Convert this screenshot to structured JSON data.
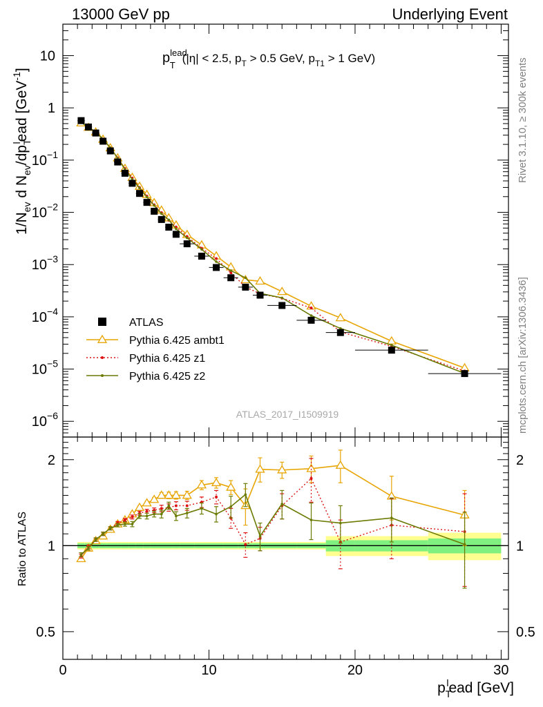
{
  "header": {
    "left": "13000 GeV pp",
    "right": "Underlying Event"
  },
  "annotation": {
    "p": "p",
    "sup": "lead",
    "sub": "T",
    "text1": "(|η| < 2.5, p",
    "sub2": "T",
    "text2": " > 0.5 GeV, p",
    "sub3": "T1",
    "text3": " > 1 GeV)"
  },
  "side_text": {
    "rivet": "Rivet 3.1.10, ≥ 300k events",
    "mcplots": "mcplots.cern.ch [arXiv:1306.3436]"
  },
  "watermark": "ATLAS_2017_I1509919",
  "y_label": {
    "t1": "1/N",
    "s1": "ev",
    "t2": " d N",
    "s2": "ev",
    "t3": "/dp",
    "s3": "T",
    "p3": "l",
    "t4": "ead [GeV",
    "p4": "-1",
    "t5": "]"
  },
  "x_label": {
    "t1": "p",
    "s1": "T",
    "p1": "l",
    "t2": "ead [GeV]"
  },
  "ratio_label": "Ratio to ATLAS",
  "colors": {
    "atlas": "#000000",
    "ambt1": "#e8a400",
    "z1": "#dd1111",
    "z2": "#6b7a00",
    "band_inner": "#80f080",
    "band_outer": "#ffff90"
  },
  "chart_data": {
    "type": "scatter",
    "x_ticks": [
      "0",
      "10",
      "20",
      "30"
    ],
    "xlim": [
      0,
      30.5
    ],
    "main": {
      "log_y": true,
      "ylim": [
        5e-07,
        40
      ],
      "y_ticks": [
        {
          "v": 10,
          "base": "10",
          "exp": ""
        },
        {
          "v": 1,
          "base": "1",
          "exp": ""
        },
        {
          "v": 0.1,
          "base": "10",
          "exp": "−1"
        },
        {
          "v": 0.01,
          "base": "10",
          "exp": "−2"
        },
        {
          "v": 0.001,
          "base": "10",
          "exp": "−3"
        },
        {
          "v": 0.0001,
          "base": "10",
          "exp": "−4"
        },
        {
          "v": 1e-05,
          "base": "10",
          "exp": "−5"
        },
        {
          "v": 1e-06,
          "base": "10",
          "exp": "−6"
        }
      ]
    },
    "ratio": {
      "log_y": true,
      "ylim": [
        0.4,
        2.4
      ],
      "y_ticks": [
        {
          "v": 2,
          "label": "2"
        },
        {
          "v": 1,
          "label": "1"
        },
        {
          "v": 0.5,
          "label": "0.5"
        }
      ]
    },
    "legend": [
      {
        "key": "atlas",
        "label": "ATLAS"
      },
      {
        "key": "ambt1",
        "label": "Pythia 6.425 ambt1"
      },
      {
        "key": "z1",
        "label": "Pythia 6.425 z1"
      },
      {
        "key": "z2",
        "label": "Pythia 6.425 z2"
      }
    ],
    "data": {
      "name": "ATLAS",
      "x": [
        1.25,
        1.75,
        2.25,
        2.75,
        3.25,
        3.75,
        4.25,
        4.75,
        5.25,
        5.75,
        6.25,
        6.75,
        7.25,
        7.75,
        8.5,
        9.5,
        10.5,
        11.5,
        12.5,
        13.5,
        15.0,
        17.0,
        19.0,
        22.5,
        27.5
      ],
      "y": [
        0.57,
        0.43,
        0.33,
        0.23,
        0.15,
        0.092,
        0.056,
        0.036,
        0.023,
        0.0155,
        0.0105,
        0.0073,
        0.0052,
        0.0038,
        0.0025,
        0.00145,
        0.00088,
        0.00056,
        0.00037,
        0.00026,
        0.000165,
        8.6e-05,
        5e-05,
        2.3e-05,
        8.2e-06
      ],
      "xerr": [
        0.25,
        0.25,
        0.25,
        0.25,
        0.25,
        0.25,
        0.25,
        0.25,
        0.25,
        0.25,
        0.25,
        0.25,
        0.25,
        0.25,
        0.5,
        0.5,
        0.5,
        0.5,
        0.5,
        0.5,
        1.0,
        1.0,
        1.0,
        2.5,
        2.5
      ],
      "band_inner": [
        0.02,
        0.02,
        0.02,
        0.02,
        0.02,
        0.02,
        0.02,
        0.02,
        0.02,
        0.02,
        0.02,
        0.02,
        0.02,
        0.02,
        0.02,
        0.02,
        0.02,
        0.02,
        0.02,
        0.02,
        0.02,
        0.02,
        0.045,
        0.045,
        0.06
      ],
      "band_outer": [
        0.03,
        0.03,
        0.03,
        0.03,
        0.03,
        0.03,
        0.03,
        0.03,
        0.03,
        0.03,
        0.03,
        0.03,
        0.03,
        0.03,
        0.03,
        0.03,
        0.03,
        0.03,
        0.03,
        0.03,
        0.03,
        0.03,
        0.08,
        0.08,
        0.11
      ]
    },
    "series": [
      {
        "key": "ambt1",
        "name": "Pythia 6.425 ambt1",
        "x": [
          1.25,
          1.75,
          2.25,
          2.75,
          3.25,
          3.75,
          4.25,
          4.75,
          5.25,
          5.75,
          6.25,
          6.75,
          7.25,
          7.75,
          8.5,
          9.5,
          10.5,
          11.5,
          12.5,
          13.5,
          15.0,
          17.0,
          19.0,
          22.5,
          27.5
        ],
        "ratio": [
          0.9,
          0.98,
          1.04,
          1.08,
          1.14,
          1.19,
          1.23,
          1.29,
          1.36,
          1.41,
          1.45,
          1.5,
          1.5,
          1.5,
          1.5,
          1.63,
          1.66,
          1.6,
          1.38,
          1.85,
          1.84,
          1.86,
          1.91,
          1.49,
          1.28
        ],
        "rerr": [
          0.015,
          0.015,
          0.015,
          0.015,
          0.015,
          0.015,
          0.015,
          0.02,
          0.02,
          0.02,
          0.025,
          0.035,
          0.04,
          0.045,
          0.05,
          0.06,
          0.07,
          0.09,
          0.2,
          0.18,
          0.12,
          0.2,
          0.25,
          0.26,
          0.28
        ]
      },
      {
        "key": "z1",
        "name": "Pythia 6.425 z1",
        "x": [
          1.25,
          1.75,
          2.25,
          2.75,
          3.25,
          3.75,
          4.25,
          4.75,
          5.25,
          5.75,
          6.25,
          6.75,
          7.25,
          7.75,
          8.5,
          9.5,
          10.5,
          11.5,
          12.5,
          13.5,
          15.0,
          17.0,
          19.0,
          22.5,
          27.5
        ],
        "ratio": [
          0.92,
          0.99,
          1.05,
          1.1,
          1.15,
          1.2,
          1.23,
          1.26,
          1.3,
          1.32,
          1.33,
          1.35,
          1.36,
          1.38,
          1.38,
          1.42,
          1.48,
          1.25,
          1.01,
          1.06,
          1.38,
          1.72,
          1.03,
          1.18,
          1.12
        ],
        "rerr": [
          0.015,
          0.015,
          0.015,
          0.015,
          0.015,
          0.015,
          0.015,
          0.02,
          0.02,
          0.02,
          0.025,
          0.035,
          0.04,
          0.045,
          0.05,
          0.06,
          0.08,
          0.1,
          0.1,
          0.1,
          0.14,
          0.3,
          0.2,
          0.28,
          0.4
        ]
      },
      {
        "key": "z2",
        "name": "Pythia 6.425 z2",
        "x": [
          1.25,
          1.75,
          2.25,
          2.75,
          3.25,
          3.75,
          4.25,
          4.75,
          5.25,
          5.75,
          6.25,
          6.75,
          7.25,
          7.75,
          8.5,
          9.5,
          10.5,
          11.5,
          12.5,
          13.5,
          15.0,
          17.0,
          19.0,
          22.5,
          27.5
        ],
        "ratio": [
          0.93,
          0.98,
          1.05,
          1.1,
          1.15,
          1.18,
          1.19,
          1.19,
          1.27,
          1.27,
          1.29,
          1.29,
          1.38,
          1.27,
          1.3,
          1.35,
          1.29,
          1.37,
          1.51,
          1.08,
          1.4,
          1.23,
          1.2,
          1.25,
          1.01
        ],
        "rerr": [
          0.015,
          0.015,
          0.015,
          0.015,
          0.015,
          0.015,
          0.02,
          0.025,
          0.025,
          0.03,
          0.03,
          0.04,
          0.04,
          0.045,
          0.05,
          0.06,
          0.08,
          0.12,
          0.14,
          0.12,
          0.16,
          0.18,
          0.18,
          0.22,
          0.3
        ]
      }
    ]
  }
}
